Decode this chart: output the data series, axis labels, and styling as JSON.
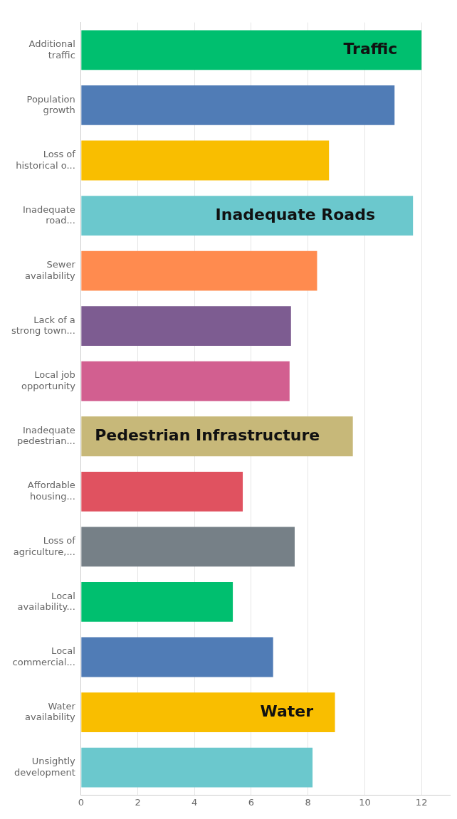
{
  "chart_data": {
    "type": "bar",
    "orientation": "horizontal",
    "categories": [
      "Additional traffic",
      "Population growth",
      "Loss of historical o...",
      "Inadequate road...",
      "Sewer availability",
      "Lack of a strong town...",
      "Local job opportunity",
      "Inadequate pedestrian...",
      "Affordable housing...",
      "Loss of agriculture,...",
      "Local availability...",
      "Local commercial...",
      "Water availability",
      "Unsightly development"
    ],
    "values": [
      12.0,
      11.05,
      8.74,
      11.7,
      8.32,
      7.4,
      7.35,
      9.58,
      5.7,
      7.53,
      5.35,
      6.77,
      8.95,
      8.16
    ],
    "colors": [
      "#00bf6f",
      "#507cb6",
      "#f9be00",
      "#6bc8cd",
      "#ff8b4f",
      "#7d5c91",
      "#d25f90",
      "#c7b879",
      "#e05260",
      "#768087",
      "#00bf6f",
      "#507cb6",
      "#f9be00",
      "#6bc8cd"
    ],
    "xlim": [
      0,
      13
    ],
    "xticks": [
      0,
      2,
      4,
      6,
      8,
      10,
      12
    ],
    "grid": "x",
    "annotations": [
      {
        "text": "Traffic",
        "x": 10.2,
        "y": "Additional traffic"
      },
      {
        "text": "Inadequate Roads",
        "x": 7.55,
        "y": "Inadequate road..."
      },
      {
        "text": "Pedestrian Infrastructure",
        "x": 4.45,
        "y": "Inadequate pedestrian..."
      },
      {
        "text": "Water",
        "x": 7.25,
        "y": "Water availability"
      }
    ]
  }
}
